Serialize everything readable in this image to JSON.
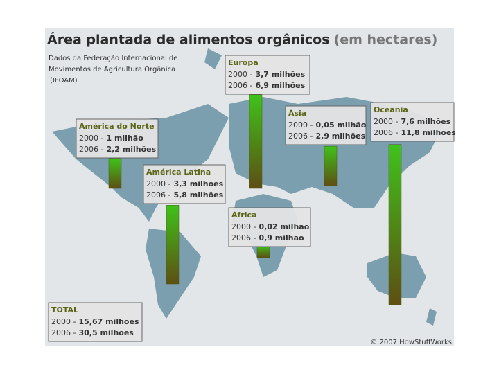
{
  "header": {
    "title": "Área plantada de alimentos orgânicos",
    "title_suffix": "(em hectares)",
    "source_lines": [
      "Dados da Federação Internacional de",
      "Movimentos de Agricultura Orgânica",
      "(IFOAM)"
    ]
  },
  "regions": [
    {
      "name": "Europa",
      "rows": [
        {
          "year": "2000 -",
          "amount": "3,7 milhões"
        },
        {
          "year": "2006 -",
          "amount": "6,9 milhões"
        }
      ],
      "bar": 6.9
    },
    {
      "name": "Ásia",
      "rows": [
        {
          "year": "2000 -",
          "amount": "0,05 milhão"
        },
        {
          "year": "2006 -",
          "amount": "2,9 milhões"
        }
      ],
      "bar": 2.9
    },
    {
      "name": "Oceania",
      "rows": [
        {
          "year": "2000 -",
          "amount": "7,6 milhões"
        },
        {
          "year": "2006 -",
          "amount": "11,8 milhões"
        }
      ],
      "bar": 11.8
    },
    {
      "name": "América do Norte",
      "rows": [
        {
          "year": "2000 -",
          "amount": "1 milhão"
        },
        {
          "year": "2006 -",
          "amount": "2,2 milhões"
        }
      ],
      "bar": 2.2
    },
    {
      "name": "América Latina",
      "rows": [
        {
          "year": "2000 -",
          "amount": "3,3 milhões"
        },
        {
          "year": "2006 -",
          "amount": "5,8 milhões"
        }
      ],
      "bar": 5.8
    },
    {
      "name": "África",
      "rows": [
        {
          "year": "2000 -",
          "amount": "0,02 milhão"
        },
        {
          "year": "2006 -",
          "amount": "0,9 milhão"
        }
      ],
      "bar": 0.9
    }
  ],
  "total": {
    "name": "TOTAL",
    "rows": [
      {
        "year": "2000 -",
        "amount": "15,67 milhões"
      },
      {
        "year": "2006 -",
        "amount": "30,5 milhões"
      }
    ]
  },
  "credit": "© 2007 HowStuffWorks"
}
